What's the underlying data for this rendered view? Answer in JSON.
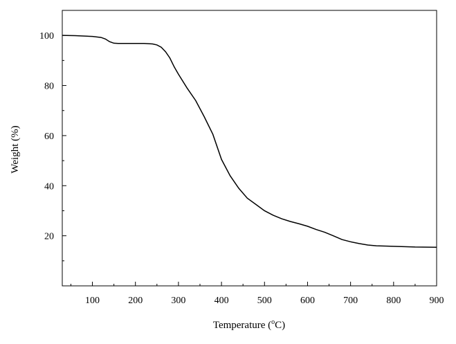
{
  "chart_data": {
    "type": "line",
    "xlabel": "Temperature (",
    "xlabel_unit_sup": "o",
    "xlabel_unit": "C)",
    "ylabel": "Weight (%)",
    "xlim": [
      30,
      900
    ],
    "ylim": [
      0,
      110
    ],
    "x_ticks": [
      100,
      200,
      300,
      400,
      500,
      600,
      700,
      800,
      900
    ],
    "y_ticks": [
      20,
      40,
      60,
      80,
      100
    ],
    "x_tick_labels": [
      "100",
      "200",
      "300",
      "400",
      "500",
      "600",
      "700",
      "800",
      "900"
    ],
    "y_tick_labels": [
      "20",
      "40",
      "60",
      "80",
      "100"
    ],
    "grid": false,
    "series": [
      {
        "color": "#000000",
        "x": [
          30,
          60,
          100,
          120,
          130,
          140,
          150,
          160,
          200,
          220,
          240,
          250,
          260,
          270,
          280,
          290,
          300,
          320,
          340,
          360,
          380,
          400,
          420,
          440,
          460,
          480,
          500,
          520,
          540,
          560,
          580,
          600,
          620,
          640,
          660,
          680,
          700,
          720,
          740,
          760,
          800,
          850,
          900
        ],
        "y": [
          100,
          99.9,
          99.6,
          99.2,
          98.6,
          97.5,
          96.9,
          96.8,
          96.8,
          96.8,
          96.6,
          96.2,
          95.3,
          93.5,
          91,
          87.5,
          84.5,
          79,
          74,
          67.5,
          60.5,
          50.5,
          44,
          39,
          35,
          32.5,
          30,
          28.2,
          26.8,
          25.7,
          24.8,
          23.8,
          22.5,
          21.4,
          20,
          18.5,
          17.6,
          16.9,
          16.3,
          16,
          15.8,
          15.5,
          15.4
        ]
      }
    ]
  }
}
